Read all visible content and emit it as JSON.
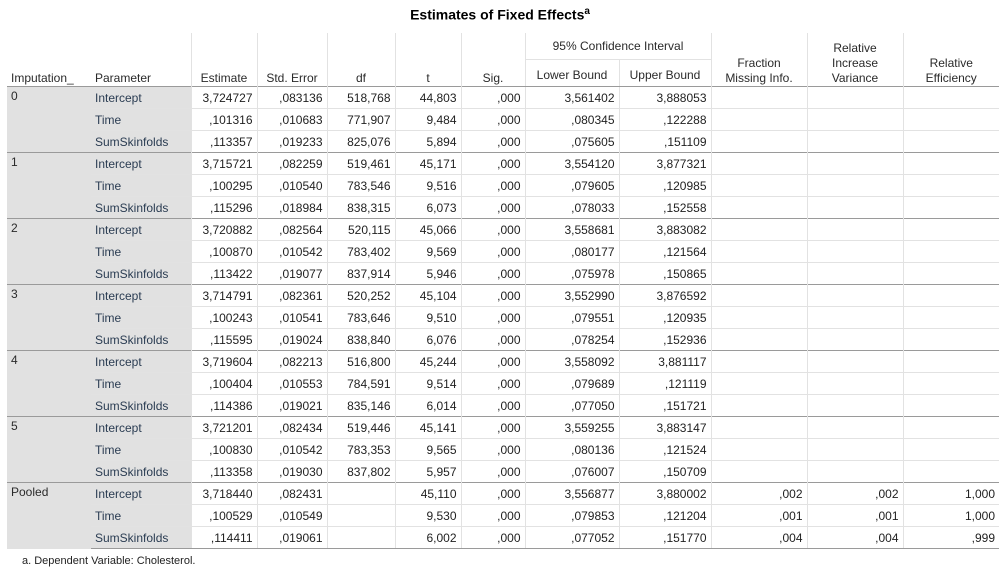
{
  "title": "Estimates of Fixed Effects",
  "title_sup": "a",
  "headers": {
    "imputation": "Imputation_",
    "parameter": "Parameter",
    "estimate": "Estimate",
    "std_error": "Std. Error",
    "df": "df",
    "t": "t",
    "sig": "Sig.",
    "ci_group": "95% Confidence Interval",
    "lower": "Lower Bound",
    "upper": "Upper Bound",
    "fmi": "Fraction Missing Info.",
    "riv": "Relative Increase Variance",
    "re": "Relative Efficiency"
  },
  "groups": [
    {
      "label": "0",
      "rows": [
        [
          "Intercept",
          "3,724727",
          ",083136",
          "518,768",
          "44,803",
          ",000",
          "3,561402",
          "3,888053",
          "",
          "",
          ""
        ],
        [
          "Time",
          ",101316",
          ",010683",
          "771,907",
          "9,484",
          ",000",
          ",080345",
          ",122288",
          "",
          "",
          ""
        ],
        [
          "SumSkinfolds",
          ",113357",
          ",019233",
          "825,076",
          "5,894",
          ",000",
          ",075605",
          ",151109",
          "",
          "",
          ""
        ]
      ]
    },
    {
      "label": "1",
      "rows": [
        [
          "Intercept",
          "3,715721",
          ",082259",
          "519,461",
          "45,171",
          ",000",
          "3,554120",
          "3,877321",
          "",
          "",
          ""
        ],
        [
          "Time",
          ",100295",
          ",010540",
          "783,546",
          "9,516",
          ",000",
          ",079605",
          ",120985",
          "",
          "",
          ""
        ],
        [
          "SumSkinfolds",
          ",115296",
          ",018984",
          "838,315",
          "6,073",
          ",000",
          ",078033",
          ",152558",
          "",
          "",
          ""
        ]
      ]
    },
    {
      "label": "2",
      "rows": [
        [
          "Intercept",
          "3,720882",
          ",082564",
          "520,115",
          "45,066",
          ",000",
          "3,558681",
          "3,883082",
          "",
          "",
          ""
        ],
        [
          "Time",
          ",100870",
          ",010542",
          "783,402",
          "9,569",
          ",000",
          ",080177",
          ",121564",
          "",
          "",
          ""
        ],
        [
          "SumSkinfolds",
          ",113422",
          ",019077",
          "837,914",
          "5,946",
          ",000",
          ",075978",
          ",150865",
          "",
          "",
          ""
        ]
      ]
    },
    {
      "label": "3",
      "rows": [
        [
          "Intercept",
          "3,714791",
          ",082361",
          "520,252",
          "45,104",
          ",000",
          "3,552990",
          "3,876592",
          "",
          "",
          ""
        ],
        [
          "Time",
          ",100243",
          ",010541",
          "783,646",
          "9,510",
          ",000",
          ",079551",
          ",120935",
          "",
          "",
          ""
        ],
        [
          "SumSkinfolds",
          ",115595",
          ",019024",
          "838,840",
          "6,076",
          ",000",
          ",078254",
          ",152936",
          "",
          "",
          ""
        ]
      ]
    },
    {
      "label": "4",
      "rows": [
        [
          "Intercept",
          "3,719604",
          ",082213",
          "516,800",
          "45,244",
          ",000",
          "3,558092",
          "3,881117",
          "",
          "",
          ""
        ],
        [
          "Time",
          ",100404",
          ",010553",
          "784,591",
          "9,514",
          ",000",
          ",079689",
          ",121119",
          "",
          "",
          ""
        ],
        [
          "SumSkinfolds",
          ",114386",
          ",019021",
          "835,146",
          "6,014",
          ",000",
          ",077050",
          ",151721",
          "",
          "",
          ""
        ]
      ]
    },
    {
      "label": "5",
      "rows": [
        [
          "Intercept",
          "3,721201",
          ",082434",
          "519,446",
          "45,141",
          ",000",
          "3,559255",
          "3,883147",
          "",
          "",
          ""
        ],
        [
          "Time",
          ",100830",
          ",010542",
          "783,353",
          "9,565",
          ",000",
          ",080136",
          ",121524",
          "",
          "",
          ""
        ],
        [
          "SumSkinfolds",
          ",113358",
          ",019030",
          "837,802",
          "5,957",
          ",000",
          ",076007",
          ",150709",
          "",
          "",
          ""
        ]
      ]
    },
    {
      "label": "Pooled",
      "rows": [
        [
          "Intercept",
          "3,718440",
          ",082431",
          "",
          "45,110",
          ",000",
          "3,556877",
          "3,880002",
          ",002",
          ",002",
          "1,000"
        ],
        [
          "Time",
          ",100529",
          ",010549",
          "",
          "9,530",
          ",000",
          ",079853",
          ",121204",
          ",001",
          ",001",
          "1,000"
        ],
        [
          "SumSkinfolds",
          ",114411",
          ",019061",
          "",
          "6,002",
          ",000",
          ",077052",
          ",151770",
          ",004",
          ",004",
          ",999"
        ]
      ]
    }
  ],
  "footnote": "a. Dependent Variable: Cholesterol."
}
